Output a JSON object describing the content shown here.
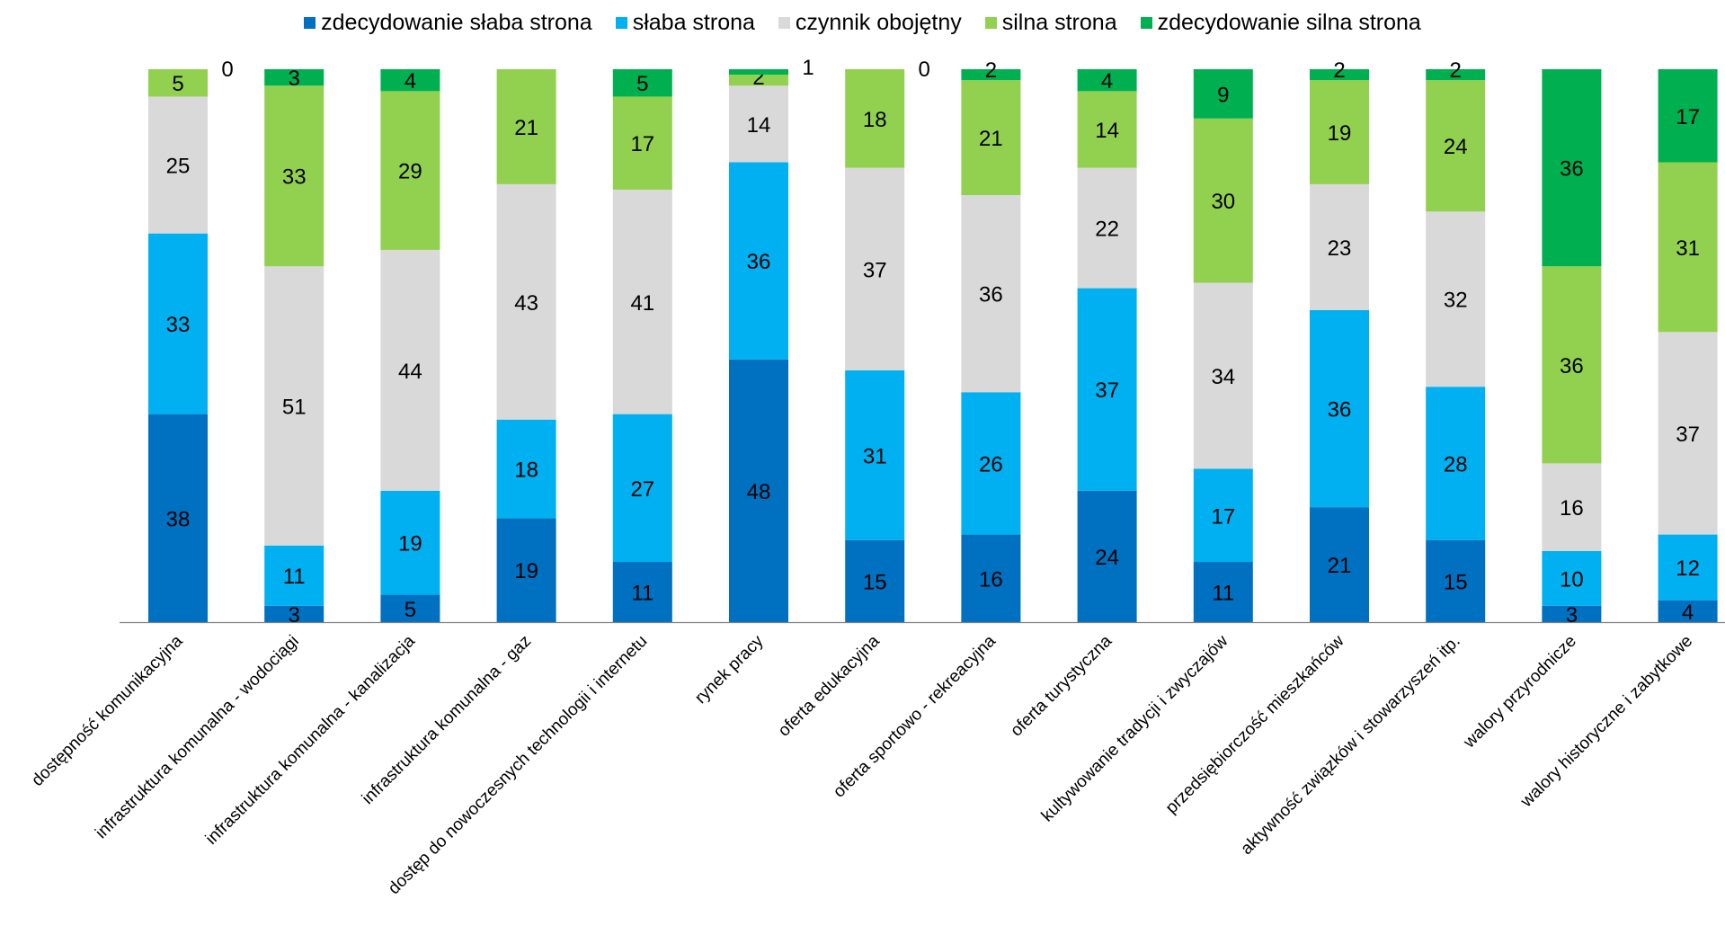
{
  "chart_data": {
    "type": "bar",
    "stacked": true,
    "legend_position": "top",
    "ylim": [
      0,
      100
    ],
    "categories": [
      "dostępność komunikacyjna",
      "infrastruktura komunalna - wodociągi",
      "infrastruktura komunalna - kanalizacja",
      "infrastruktura komunalna - gaz",
      "dostęp do nowoczesnych technologii i internetu",
      "rynek pracy",
      "oferta edukacyjna",
      "oferta sportowo - rekreacyjna",
      "oferta turystyczna",
      "kultywowanie tradycji i zwyczajów",
      "przedsiębiorczość mieszkańców",
      "aktywność związków i stowarzyszeń itp.",
      "walory przyrodnicze",
      "walory historyczne i zabytkowe"
    ],
    "series": [
      {
        "name": "zdecydowanie słaba strona",
        "color": "#0070C0",
        "values": [
          38,
          3,
          5,
          19,
          11,
          48,
          15,
          16,
          24,
          11,
          21,
          15,
          3,
          4
        ]
      },
      {
        "name": "słaba strona",
        "color": "#00B0F0",
        "values": [
          33,
          11,
          19,
          18,
          27,
          36,
          31,
          26,
          37,
          17,
          36,
          28,
          10,
          12
        ]
      },
      {
        "name": "czynnik obojętny",
        "color": "#D9D9D9",
        "values": [
          25,
          51,
          44,
          43,
          41,
          14,
          37,
          36,
          22,
          34,
          23,
          32,
          16,
          37
        ]
      },
      {
        "name": "silna strona",
        "color": "#92D050",
        "values": [
          5,
          33,
          29,
          21,
          17,
          2,
          18,
          21,
          14,
          30,
          19,
          24,
          36,
          31
        ]
      },
      {
        "name": "zdecydowanie silna strona",
        "color": "#00B050",
        "values": [
          0,
          3,
          4,
          0,
          5,
          1,
          0,
          2,
          4,
          9,
          2,
          2,
          36,
          17
        ]
      }
    ],
    "visible_data_labels": {
      "zdecydowanie silna strona": [
        true,
        true,
        true,
        false,
        true,
        true,
        true,
        true,
        true,
        true,
        true,
        true,
        true,
        true
      ]
    }
  }
}
